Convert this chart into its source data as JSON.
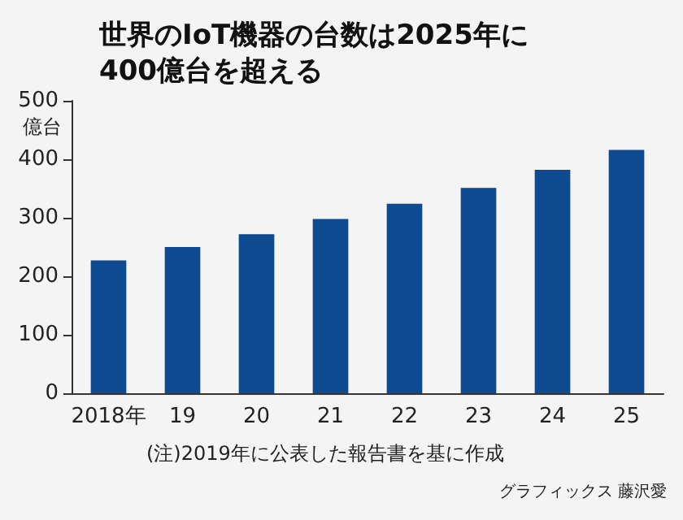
{
  "chart_data": {
    "type": "bar",
    "title": "世界のIoT機器の台数は2025年に\n400億台を超える",
    "ylabel": "億台",
    "categories": [
      "2018年",
      "19",
      "20",
      "21",
      "22",
      "23",
      "24",
      "25"
    ],
    "values": [
      227,
      250,
      272,
      298,
      324,
      351,
      382,
      416
    ],
    "color": "#0d4a8f",
    "ylim": [
      0,
      500
    ],
    "yticks": [
      0,
      100,
      200,
      300,
      400,
      500
    ],
    "grid": false,
    "annotations": [
      "(注)2019年に公表した報告書を基に作成",
      "グラフィックス 藤沢愛"
    ]
  }
}
